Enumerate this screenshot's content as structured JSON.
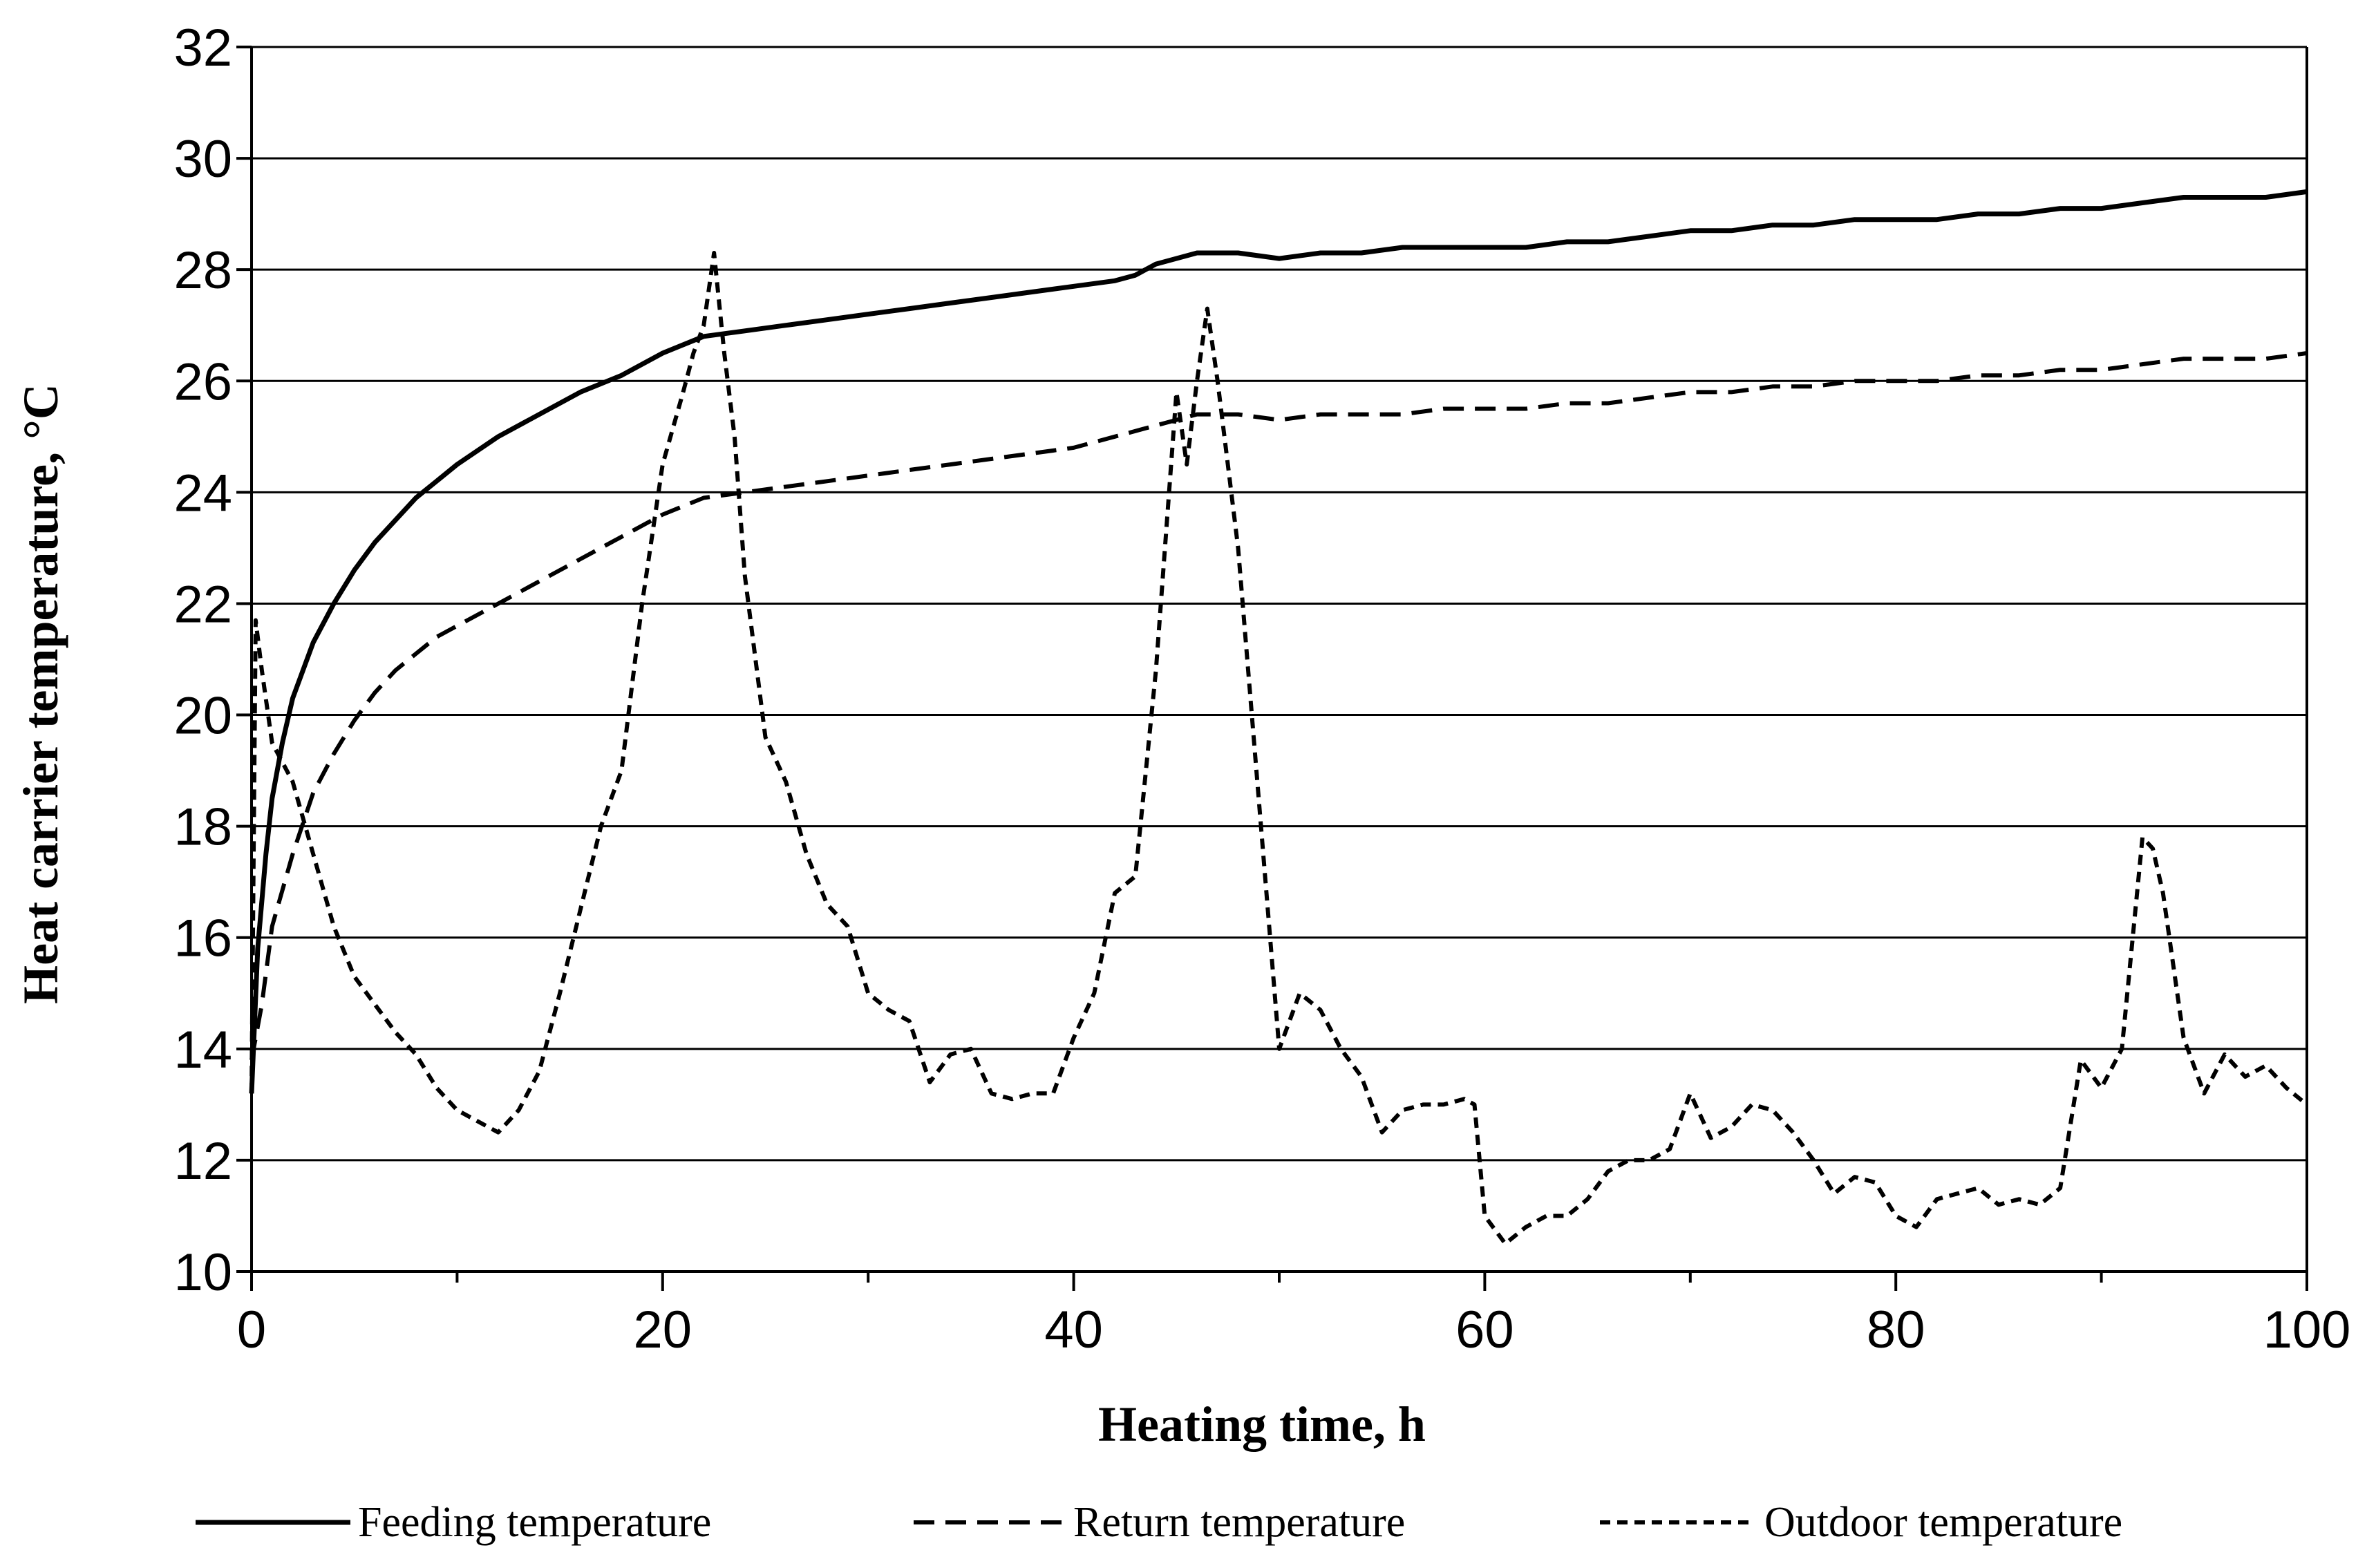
{
  "chart_data": {
    "type": "line",
    "title": "",
    "xlabel": "Heating time, h",
    "ylabel": "Heat carrier temperature, °C",
    "xlim": [
      0,
      100
    ],
    "ylim": [
      10,
      32
    ],
    "x_ticks": [
      "0",
      "20",
      "40",
      "60",
      "80",
      "100"
    ],
    "y_ticks": [
      "10",
      "12",
      "14",
      "16",
      "18",
      "20",
      "22",
      "24",
      "26",
      "28",
      "30",
      "32"
    ],
    "grid": true,
    "legend_position": "bottom",
    "series": [
      {
        "name": "Feeding temperature",
        "style": "solid",
        "x": [
          0,
          0.3,
          0.7,
          1,
          1.5,
          2,
          3,
          4,
          5,
          6,
          7,
          8,
          9,
          10,
          12,
          14,
          16,
          18,
          20,
          22,
          24,
          26,
          28,
          30,
          32,
          34,
          36,
          38,
          40,
          42,
          43,
          44,
          46,
          47,
          48,
          50,
          52,
          54,
          56,
          58,
          60,
          62,
          64,
          66,
          68,
          70,
          72,
          74,
          76,
          78,
          80,
          82,
          84,
          86,
          88,
          90,
          92,
          94,
          96,
          98,
          100
        ],
        "values": [
          13.2,
          15.8,
          17.5,
          18.5,
          19.5,
          20.3,
          21.3,
          22,
          22.6,
          23.1,
          23.5,
          23.9,
          24.2,
          24.5,
          25,
          25.4,
          25.8,
          26.1,
          26.5,
          26.8,
          26.9,
          27,
          27.1,
          27.2,
          27.3,
          27.4,
          27.5,
          27.6,
          27.7,
          27.8,
          27.9,
          28.1,
          28.3,
          28.3,
          28.3,
          28.2,
          28.3,
          28.3,
          28.4,
          28.4,
          28.4,
          28.4,
          28.5,
          28.5,
          28.6,
          28.7,
          28.7,
          28.8,
          28.8,
          28.9,
          28.9,
          28.9,
          29,
          29,
          29.1,
          29.1,
          29.2,
          29.3,
          29.3,
          29.3,
          29.4
        ]
      },
      {
        "name": "Return temperature",
        "style": "dashed",
        "x": [
          0,
          0.5,
          1,
          2,
          3,
          4,
          5,
          6,
          7,
          8,
          9,
          10,
          12,
          14,
          16,
          18,
          20,
          22,
          24,
          26,
          28,
          30,
          32,
          34,
          36,
          38,
          40,
          42,
          44,
          46,
          48,
          50,
          52,
          54,
          56,
          58,
          60,
          62,
          64,
          66,
          68,
          70,
          72,
          74,
          76,
          78,
          80,
          82,
          84,
          86,
          88,
          90,
          92,
          94,
          96,
          98,
          100
        ],
        "values": [
          13.8,
          14.8,
          16.2,
          17.5,
          18.6,
          19.3,
          19.9,
          20.4,
          20.8,
          21.1,
          21.4,
          21.6,
          22,
          22.4,
          22.8,
          23.2,
          23.6,
          23.9,
          24,
          24.1,
          24.2,
          24.3,
          24.4,
          24.5,
          24.6,
          24.7,
          24.8,
          25,
          25.2,
          25.4,
          25.4,
          25.3,
          25.4,
          25.4,
          25.4,
          25.5,
          25.5,
          25.5,
          25.6,
          25.6,
          25.7,
          25.8,
          25.8,
          25.9,
          25.9,
          26,
          26,
          26,
          26.1,
          26.1,
          26.2,
          26.2,
          26.3,
          26.4,
          26.4,
          26.4,
          26.5
        ]
      },
      {
        "name": "Outdoor temperature",
        "style": "dotted",
        "x": [
          0,
          0.2,
          0.5,
          1,
          2,
          3,
          4,
          5,
          6,
          7,
          8,
          9,
          10,
          11,
          12,
          13,
          14,
          15,
          16,
          17,
          18,
          19,
          20,
          21,
          21.5,
          22,
          22.5,
          23,
          23.5,
          24,
          25,
          26,
          27,
          28,
          29,
          30,
          31,
          32,
          33,
          34,
          35,
          36,
          37,
          38,
          39,
          40,
          41,
          42,
          43,
          44,
          45,
          45.5,
          46,
          46.5,
          47,
          48,
          49,
          50,
          51,
          52,
          53,
          54,
          55,
          56,
          57,
          58,
          59,
          59.5,
          60,
          61,
          62,
          63,
          64,
          65,
          66,
          67,
          68,
          69,
          70,
          71,
          72,
          73,
          74,
          75,
          76,
          77,
          78,
          79,
          80,
          81,
          82,
          83,
          84,
          85,
          86,
          87,
          88,
          89,
          90,
          91,
          92,
          92.5,
          93,
          94,
          95,
          96,
          97,
          98,
          99,
          100
        ],
        "values": [
          13.2,
          21.7,
          20.8,
          19.5,
          18.8,
          17.5,
          16.2,
          15.3,
          14.8,
          14.3,
          13.9,
          13.3,
          12.9,
          12.7,
          12.5,
          12.9,
          13.6,
          15,
          16.5,
          18,
          19,
          22,
          24.5,
          25.8,
          26.5,
          27,
          28.3,
          26.5,
          25,
          22.5,
          19.6,
          18.8,
          17.5,
          16.6,
          16.2,
          15,
          14.7,
          14.5,
          13.4,
          13.9,
          14,
          13.2,
          13.1,
          13.2,
          13.2,
          14.2,
          15,
          16.8,
          17.1,
          20.8,
          25.8,
          24.5,
          26,
          27.3,
          26,
          23,
          18.5,
          14,
          15,
          14.7,
          14,
          13.5,
          12.5,
          12.9,
          13,
          13,
          13.1,
          13,
          11,
          10.5,
          10.8,
          11,
          11,
          11.3,
          11.8,
          12,
          12,
          12.2,
          13.2,
          12.4,
          12.6,
          13,
          12.9,
          12.5,
          12,
          11.4,
          11.7,
          11.6,
          11,
          10.8,
          11.3,
          11.4,
          11.5,
          11.2,
          11.3,
          11.2,
          11.5,
          13.8,
          13.3,
          14,
          17.8,
          17.6,
          16.8,
          14.2,
          13.2,
          13.9,
          13.5,
          13.7,
          13.3,
          13
        ]
      }
    ]
  }
}
